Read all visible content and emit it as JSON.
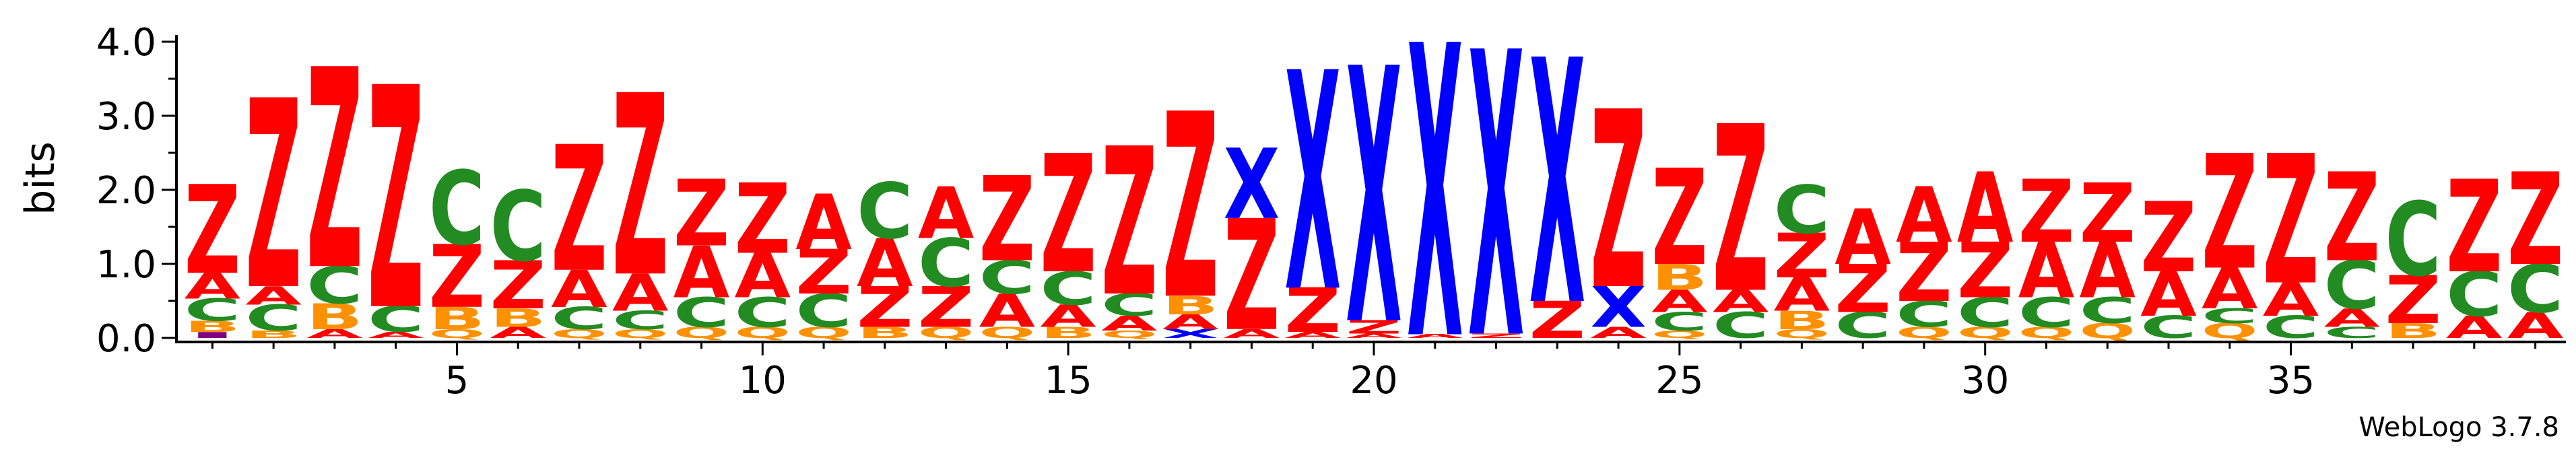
{
  "chart_data": {
    "type": "sequence-logo",
    "ylabel": "bits",
    "ylim": [
      0,
      4.0
    ],
    "yticks": [
      "0.0",
      "1.0",
      "2.0",
      "3.0",
      "4.0"
    ],
    "xlim": [
      0.5,
      39.5
    ],
    "xticks": [
      5,
      10,
      15,
      20,
      25,
      30,
      35
    ],
    "colors": {
      "Z": "#ff0000",
      "A": "#ff0000",
      "X": "#0000ff",
      "C": "#228b22",
      "B": "#ff9000",
      "Q": "#ff9000",
      "I": "#800080"
    },
    "columns": [
      [
        [
          "I",
          0.08
        ],
        [
          "B",
          0.15
        ],
        [
          "C",
          0.3
        ],
        [
          "A",
          0.35
        ],
        [
          "Z",
          1.2
        ]
      ],
      [
        [
          "B",
          0.1
        ],
        [
          "C",
          0.35
        ],
        [
          "A",
          0.25
        ],
        [
          "Z",
          2.55
        ]
      ],
      [
        [
          "A",
          0.12
        ],
        [
          "B",
          0.35
        ],
        [
          "C",
          0.5
        ],
        [
          "Z",
          2.7
        ]
      ],
      [
        [
          "A",
          0.08
        ],
        [
          "C",
          0.35
        ],
        [
          "Z",
          3.0
        ]
      ],
      [
        [
          "Q",
          0.12
        ],
        [
          "B",
          0.3
        ],
        [
          "Z",
          0.85
        ],
        [
          "C",
          1.0
        ]
      ],
      [
        [
          "A",
          0.15
        ],
        [
          "B",
          0.25
        ],
        [
          "Z",
          0.65
        ],
        [
          "C",
          0.95
        ]
      ],
      [
        [
          "Q",
          0.12
        ],
        [
          "C",
          0.3
        ],
        [
          "A",
          0.5
        ],
        [
          "Z",
          1.7
        ]
      ],
      [
        [
          "Q",
          0.12
        ],
        [
          "C",
          0.25
        ],
        [
          "A",
          0.5
        ],
        [
          "Z",
          2.45
        ]
      ],
      [
        [
          "Q",
          0.15
        ],
        [
          "C",
          0.4
        ],
        [
          "A",
          0.7
        ],
        [
          "Z",
          0.9
        ]
      ],
      [
        [
          "Q",
          0.15
        ],
        [
          "C",
          0.4
        ],
        [
          "A",
          0.6
        ],
        [
          "Z",
          0.95
        ]
      ],
      [
        [
          "Q",
          0.15
        ],
        [
          "C",
          0.45
        ],
        [
          "Z",
          0.6
        ],
        [
          "A",
          0.75
        ]
      ],
      [
        [
          "B",
          0.15
        ],
        [
          "Z",
          0.55
        ],
        [
          "A",
          0.65
        ],
        [
          "C",
          0.75
        ]
      ],
      [
        [
          "Q",
          0.15
        ],
        [
          "Z",
          0.55
        ],
        [
          "C",
          0.65
        ],
        [
          "A",
          0.7
        ]
      ],
      [
        [
          "Q",
          0.15
        ],
        [
          "A",
          0.45
        ],
        [
          "C",
          0.45
        ],
        [
          "Z",
          1.15
        ]
      ],
      [
        [
          "B",
          0.15
        ],
        [
          "A",
          0.3
        ],
        [
          "C",
          0.45
        ],
        [
          "Z",
          1.6
        ]
      ],
      [
        [
          "Q",
          0.1
        ],
        [
          "A",
          0.2
        ],
        [
          "C",
          0.3
        ],
        [
          "Z",
          2.0
        ]
      ],
      [
        [
          "X",
          0.12
        ],
        [
          "A",
          0.2
        ],
        [
          "B",
          0.25
        ],
        [
          "Z",
          2.5
        ]
      ],
      [
        [
          "A",
          0.12
        ],
        [
          "Z",
          1.5
        ],
        [
          "X",
          0.95
        ]
      ],
      [
        [
          "A",
          0.08
        ],
        [
          "Z",
          0.6
        ],
        [
          "X",
          2.95
        ]
      ],
      [
        [
          "A",
          0.06
        ],
        [
          "Z",
          0.18
        ],
        [
          "X",
          3.45
        ]
      ],
      [
        [
          "A",
          0.05
        ],
        [
          "X",
          3.95
        ]
      ],
      [
        [
          "Z",
          0.06
        ],
        [
          "X",
          3.85
        ]
      ],
      [
        [
          "Z",
          0.5
        ],
        [
          "X",
          3.3
        ]
      ],
      [
        [
          "A",
          0.15
        ],
        [
          "X",
          0.55
        ],
        [
          "Z",
          2.4
        ]
      ],
      [
        [
          "Q",
          0.1
        ],
        [
          "C",
          0.25
        ],
        [
          "A",
          0.3
        ],
        [
          "B",
          0.35
        ],
        [
          "Z",
          1.3
        ]
      ],
      [
        [
          "C",
          0.35
        ],
        [
          "A",
          0.3
        ],
        [
          "Z",
          2.25
        ]
      ],
      [
        [
          "Q",
          0.12
        ],
        [
          "B",
          0.25
        ],
        [
          "A",
          0.45
        ],
        [
          "Z",
          0.6
        ],
        [
          "C",
          0.65
        ]
      ],
      [
        [
          "C",
          0.35
        ],
        [
          "Z",
          0.65
        ],
        [
          "A",
          0.75
        ]
      ],
      [
        [
          "Q",
          0.15
        ],
        [
          "C",
          0.35
        ],
        [
          "Z",
          0.8
        ],
        [
          "A",
          0.75
        ]
      ],
      [
        [
          "Q",
          0.15
        ],
        [
          "C",
          0.4
        ],
        [
          "Z",
          0.75
        ],
        [
          "A",
          0.95
        ]
      ],
      [
        [
          "Q",
          0.15
        ],
        [
          "C",
          0.4
        ],
        [
          "A",
          0.75
        ],
        [
          "Z",
          0.85
        ]
      ],
      [
        [
          "Q",
          0.2
        ],
        [
          "C",
          0.35
        ],
        [
          "A",
          0.75
        ],
        [
          "Z",
          0.8
        ]
      ],
      [
        [
          "C",
          0.3
        ],
        [
          "A",
          0.6
        ],
        [
          "Z",
          0.95
        ]
      ],
      [
        [
          "Q",
          0.2
        ],
        [
          "C",
          0.2
        ],
        [
          "A",
          0.55
        ],
        [
          "Z",
          1.55
        ]
      ],
      [
        [
          "C",
          0.3
        ],
        [
          "A",
          0.45
        ],
        [
          "Z",
          1.75
        ]
      ],
      [
        [
          "C",
          0.15
        ],
        [
          "A",
          0.25
        ],
        [
          "C",
          0.65
        ],
        [
          "Z",
          1.2
        ]
      ],
      [
        [
          "B",
          0.2
        ],
        [
          "Z",
          0.65
        ],
        [
          "C",
          1.0
        ]
      ],
      [
        [
          "A",
          0.3
        ],
        [
          "C",
          0.6
        ],
        [
          "Z",
          1.25
        ]
      ],
      [
        [
          "A",
          0.35
        ],
        [
          "C",
          0.65
        ],
        [
          "Z",
          1.25
        ]
      ]
    ]
  },
  "footer": {
    "credit": "WebLogo 3.7.8"
  }
}
